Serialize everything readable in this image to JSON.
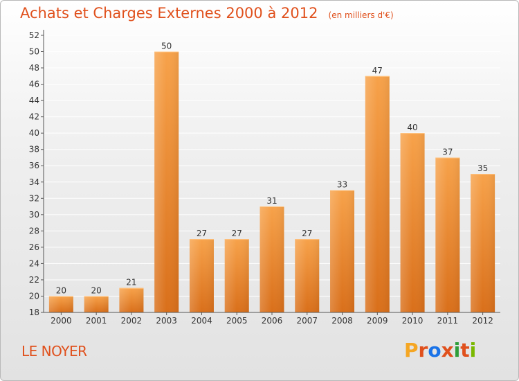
{
  "header": {
    "title": "Achats et Charges Externes 2000 à 2012",
    "unit": "(en milliers d'€)"
  },
  "footer": {
    "place": "LE NOYER",
    "brand": "Proxiti",
    "brand_colors": [
      "#f5a623",
      "#e0501c",
      "#1a73e8",
      "#e0501c",
      "#2e9e3a",
      "#e0501c",
      "#7ab800"
    ]
  },
  "colors": {
    "bar_top": "#f7a24a",
    "bar_bottom": "#d96f1a",
    "title": "#e0501c",
    "grid": "#ffffff"
  },
  "chart_data": {
    "type": "bar",
    "title": "Achats et Charges Externes 2000 à 2012",
    "categories": [
      "2000",
      "2001",
      "2002",
      "2003",
      "2004",
      "2005",
      "2006",
      "2007",
      "2008",
      "2009",
      "2010",
      "2011",
      "2012"
    ],
    "values": [
      20,
      20,
      21,
      50,
      27,
      27,
      31,
      27,
      33,
      47,
      40,
      37,
      35
    ],
    "ylim": [
      18,
      52
    ],
    "yticks": [
      18,
      20,
      22,
      24,
      26,
      28,
      30,
      32,
      34,
      36,
      38,
      40,
      42,
      44,
      46,
      48,
      50,
      52
    ],
    "grid": true,
    "xlabel": "",
    "ylabel": ""
  }
}
